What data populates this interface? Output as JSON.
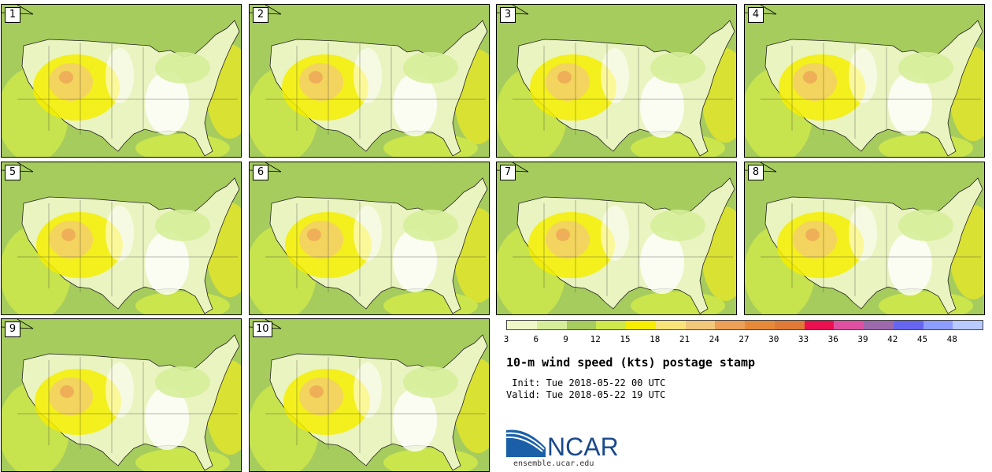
{
  "panels": [
    {
      "label": "1"
    },
    {
      "label": "2"
    },
    {
      "label": "3"
    },
    {
      "label": "4"
    },
    {
      "label": "5"
    },
    {
      "label": "6"
    },
    {
      "label": "7"
    },
    {
      "label": "8"
    },
    {
      "label": "9"
    },
    {
      "label": "10"
    }
  ],
  "colorbar": {
    "colors": [
      "#f0f8c8",
      "#d6ee9a",
      "#a6cc5e",
      "#cfe84a",
      "#f5ee00",
      "#f9e47a",
      "#f2c87a",
      "#eba055",
      "#e68a3a",
      "#e07a38",
      "#ec1050",
      "#e050a0",
      "#9c6aac",
      "#6666f0",
      "#8c9cff",
      "#b8caff"
    ],
    "ticks": [
      "3",
      "6",
      "9",
      "12",
      "15",
      "18",
      "21",
      "24",
      "27",
      "30",
      "33",
      "36",
      "39",
      "42",
      "45",
      "48"
    ]
  },
  "title": "10-m wind speed (kts) postage stamp",
  "init": " Init: Tue 2018-05-22 00 UTC",
  "valid": "Valid: Tue 2018-05-22 19 UTC",
  "logo_text": "NCAR",
  "url": "ensemble.ucar.edu"
}
